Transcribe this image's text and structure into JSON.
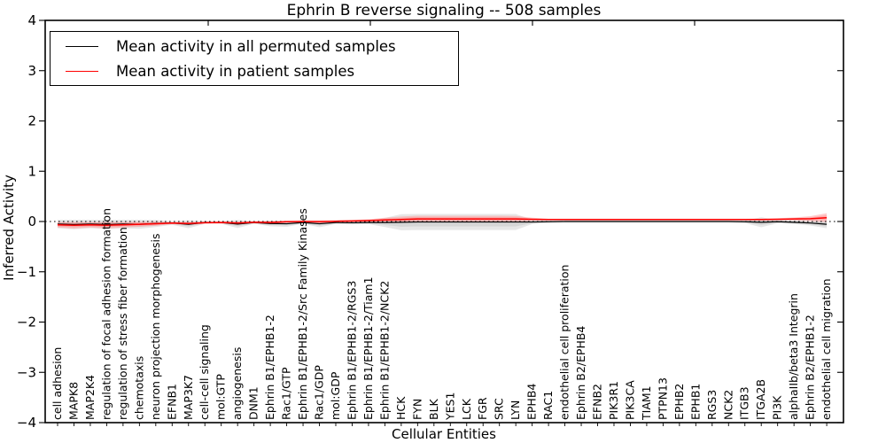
{
  "chart_data": {
    "type": "line",
    "title": "Ephrin B reverse signaling -- 508 samples",
    "xlabel": "Cellular Entities",
    "ylabel": "Inferred Activity",
    "ylim": [
      -4,
      4
    ],
    "yticks": [
      4,
      3,
      2,
      1,
      0,
      -1,
      -2,
      -3,
      -4
    ],
    "grid": false,
    "legend_position": "upper left",
    "zero_line": "dotted",
    "categories": [
      "cell adhesion",
      "MAPK8",
      "MAP2K4",
      "regulation of focal adhesion formation",
      "regulation of stress fiber formation",
      "chemotaxis",
      "neuron projection morphogenesis",
      "EFNB1",
      "MAP3K7",
      "cell-cell signaling",
      "mol:GTP",
      "angiogenesis",
      "DNM1",
      "Ephrin B1/EPHB1-2",
      "Rac1/GTP",
      "Ephrin B1/EPHB1-2/Src Family Kinases",
      "Rac1/GDP",
      "mol:GDP",
      "Ephrin B1/EPHB1-2/RGS3",
      "Ephrin B1/EPHB1-2/Tiam1",
      "Ephrin B1/EPHB1-2/NCK2",
      "HCK",
      "FYN",
      "BLK",
      "YES1",
      "LCK",
      "FGR",
      "SRC",
      "LYN",
      "EPHB4",
      "RAC1",
      "endothelial cell proliferation",
      "Ephrin B2/EPHB4",
      "EFNB2",
      "PIK3R1",
      "PIK3CA",
      "TIAM1",
      "PTPN13",
      "EPHB2",
      "EPHB1",
      "RGS3",
      "NCK2",
      "ITGB3",
      "ITGA2B",
      "PI3K",
      "alphaIIb/beta3 Integrin",
      "Ephrin B2/EPHB1-2",
      "endothelial cell migration"
    ],
    "series": [
      {
        "name": "Mean activity in all permuted samples",
        "color": "#000000",
        "band_color": "#c9c9c9",
        "values": [
          -0.05,
          -0.06,
          -0.05,
          -0.06,
          -0.05,
          -0.055,
          -0.04,
          -0.03,
          -0.055,
          -0.02,
          -0.02,
          -0.05,
          -0.02,
          -0.04,
          -0.045,
          -0.02,
          -0.045,
          -0.02,
          -0.025,
          -0.02,
          -0.02,
          -0.015,
          -0.01,
          -0.01,
          -0.01,
          -0.01,
          -0.01,
          -0.01,
          -0.01,
          -0.01,
          -0.005,
          0,
          0,
          0,
          0,
          0,
          0,
          0,
          0,
          0,
          0,
          0,
          -0.005,
          -0.015,
          -0.005,
          -0.015,
          -0.03,
          -0.055
        ],
        "std": [
          0.085,
          0.095,
          0.085,
          0.09,
          0.085,
          0.09,
          0.07,
          0.035,
          0.08,
          0.025,
          0.025,
          0.08,
          0.025,
          0.055,
          0.06,
          0.025,
          0.07,
          0.03,
          0.035,
          0.03,
          0.09,
          0.16,
          0.16,
          0.16,
          0.16,
          0.16,
          0.16,
          0.16,
          0.16,
          0.04,
          0.02,
          0.02,
          0.02,
          0.02,
          0.02,
          0.02,
          0.02,
          0.02,
          0.02,
          0.02,
          0.02,
          0.02,
          0.025,
          0.1,
          0.03,
          0.035,
          0.05,
          0.08
        ]
      },
      {
        "name": "Mean activity in patient samples",
        "color": "#ff0000",
        "band_color": "#ff9999",
        "values": [
          -0.065,
          -0.075,
          -0.065,
          -0.075,
          -0.065,
          -0.055,
          -0.045,
          -0.03,
          -0.04,
          -0.025,
          -0.02,
          -0.03,
          -0.015,
          -0.02,
          -0.005,
          0,
          -0.005,
          0.005,
          0.01,
          0.02,
          0.03,
          0.04,
          0.05,
          0.05,
          0.05,
          0.05,
          0.05,
          0.05,
          0.05,
          0.045,
          0.04,
          0.04,
          0.04,
          0.04,
          0.04,
          0.04,
          0.04,
          0.04,
          0.04,
          0.04,
          0.04,
          0.04,
          0.04,
          0.04,
          0.045,
          0.05,
          0.055,
          0.075
        ],
        "std": [
          0.055,
          0.065,
          0.055,
          0.065,
          0.055,
          0.05,
          0.04,
          0.02,
          0.03,
          0.02,
          0.02,
          0.03,
          0.02,
          0.03,
          0.02,
          0.02,
          0.03,
          0.02,
          0.02,
          0.025,
          0.045,
          0.06,
          0.065,
          0.065,
          0.065,
          0.065,
          0.065,
          0.065,
          0.06,
          0.03,
          0.015,
          0.015,
          0.015,
          0.015,
          0.015,
          0.015,
          0.015,
          0.015,
          0.015,
          0.015,
          0.015,
          0.015,
          0.015,
          0.02,
          0.02,
          0.03,
          0.05,
          0.09
        ]
      }
    ]
  }
}
